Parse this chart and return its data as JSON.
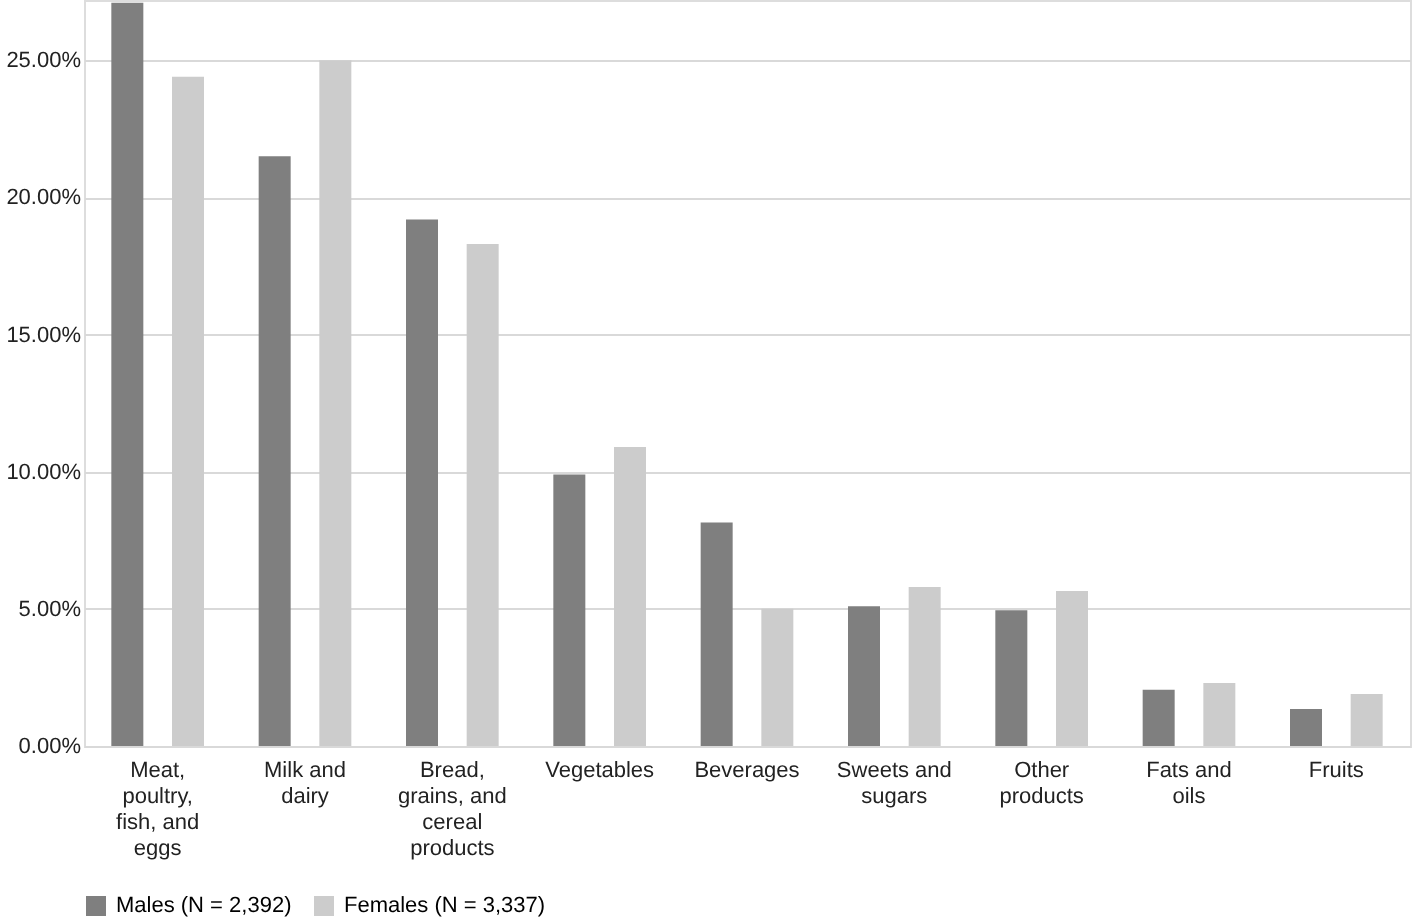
{
  "chart_data": {
    "type": "bar",
    "categories": [
      "Meat, poultry, fish, and eggs",
      "Milk and dairy",
      "Bread, grains, and cereal products",
      "Vegetables",
      "Beverages",
      "Sweets and sugars",
      "Other products",
      "Fats and oils",
      "Fruits"
    ],
    "series": [
      {
        "name": "Males (N = 2,392)",
        "color": "#7f7f7f",
        "values": [
          27.1,
          21.5,
          19.2,
          9.9,
          8.15,
          5.1,
          4.95,
          2.05,
          1.35
        ]
      },
      {
        "name": "Females (N = 3,337)",
        "color": "#cccccc",
        "values": [
          24.4,
          25.0,
          18.3,
          10.9,
          5.0,
          5.8,
          5.65,
          2.3,
          1.9
        ]
      }
    ],
    "ylim": [
      0,
      27.2
    ],
    "yticks": [
      {
        "value": 0,
        "label": "0.00%"
      },
      {
        "value": 5,
        "label": "5.00%"
      },
      {
        "value": 10,
        "label": "10.00%"
      },
      {
        "value": 15,
        "label": "15.00%"
      },
      {
        "value": 20,
        "label": "20.00%"
      },
      {
        "value": 25,
        "label": "25.00%"
      }
    ],
    "grid": "y",
    "legend": "bottom"
  }
}
